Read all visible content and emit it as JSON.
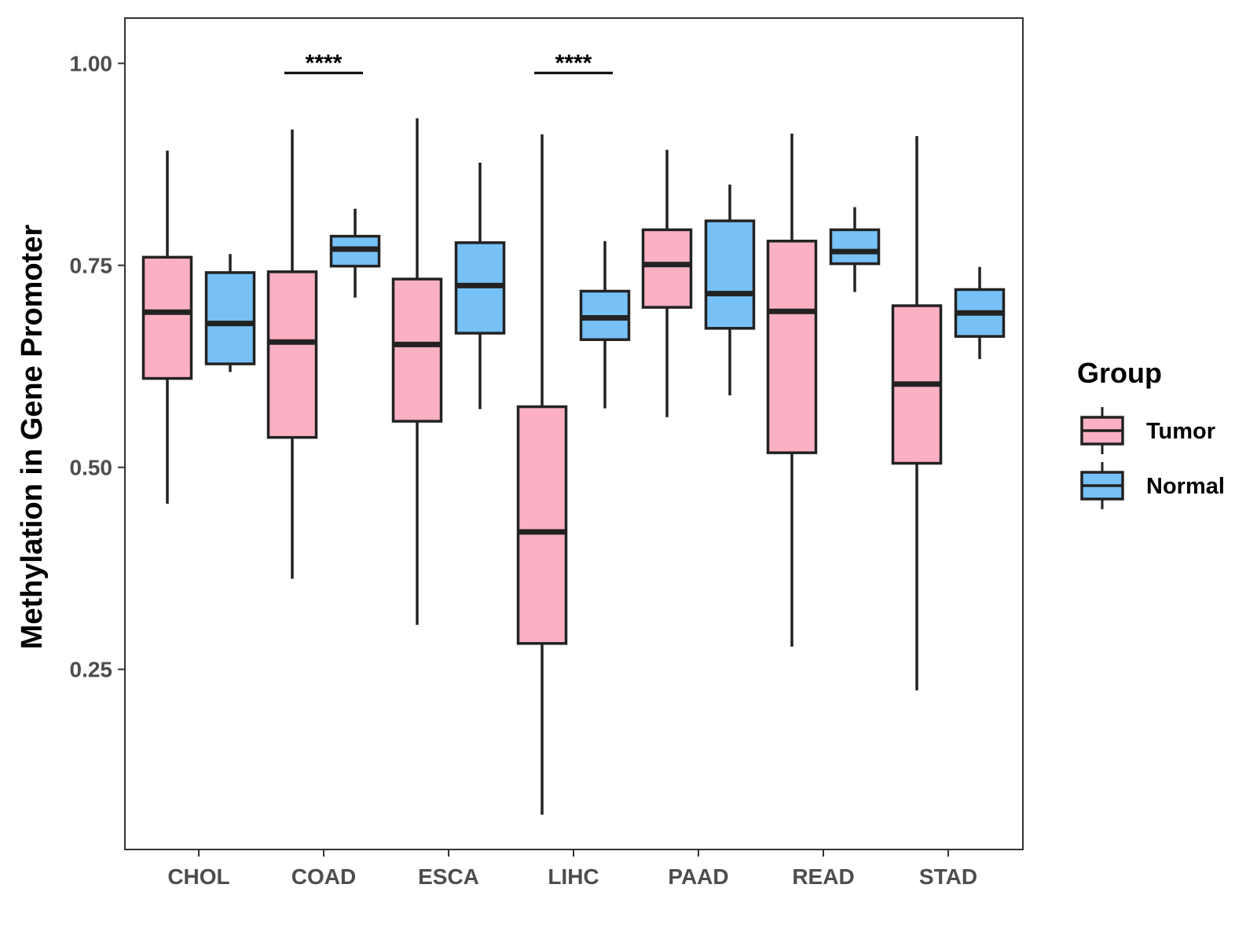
{
  "chart_data": {
    "type": "boxplot",
    "title": "",
    "xlabel": "",
    "ylabel": "Methylation in Gene Promoter",
    "ylim": [
      0.027,
      1.056
    ],
    "yticks": [
      0.25,
      0.5,
      0.75,
      1.0
    ],
    "ytick_labels": [
      "0.25",
      "0.50",
      "0.75",
      "1.00"
    ],
    "categories": [
      "CHOL",
      "COAD",
      "ESCA",
      "LIHC",
      "PAAD",
      "READ",
      "STAD"
    ],
    "legend": {
      "title": "Group",
      "position": "right"
    },
    "series": [
      {
        "name": "Tumor",
        "color": "#FBB1C3",
        "boxes": [
          {
            "category": "CHOL",
            "whisker_low": 0.455,
            "q1": 0.61,
            "median": 0.692,
            "q3": 0.76,
            "whisker_high": 0.892
          },
          {
            "category": "COAD",
            "whisker_low": 0.362,
            "q1": 0.537,
            "median": 0.655,
            "q3": 0.742,
            "whisker_high": 0.918
          },
          {
            "category": "ESCA",
            "whisker_low": 0.305,
            "q1": 0.557,
            "median": 0.652,
            "q3": 0.733,
            "whisker_high": 0.932
          },
          {
            "category": "LIHC",
            "whisker_low": 0.07,
            "q1": 0.282,
            "median": 0.42,
            "q3": 0.575,
            "whisker_high": 0.912
          },
          {
            "category": "PAAD",
            "whisker_low": 0.562,
            "q1": 0.698,
            "median": 0.751,
            "q3": 0.794,
            "whisker_high": 0.893
          },
          {
            "category": "READ",
            "whisker_low": 0.278,
            "q1": 0.518,
            "median": 0.693,
            "q3": 0.78,
            "whisker_high": 0.913
          },
          {
            "category": "STAD",
            "whisker_low": 0.224,
            "q1": 0.505,
            "median": 0.603,
            "q3": 0.7,
            "whisker_high": 0.91
          }
        ]
      },
      {
        "name": "Normal",
        "color": "#77C1F7",
        "boxes": [
          {
            "category": "CHOL",
            "whisker_low": 0.618,
            "q1": 0.628,
            "median": 0.678,
            "q3": 0.741,
            "whisker_high": 0.764
          },
          {
            "category": "COAD",
            "whisker_low": 0.71,
            "q1": 0.749,
            "median": 0.77,
            "q3": 0.786,
            "whisker_high": 0.82
          },
          {
            "category": "ESCA",
            "whisker_low": 0.572,
            "q1": 0.666,
            "median": 0.725,
            "q3": 0.778,
            "whisker_high": 0.877
          },
          {
            "category": "LIHC",
            "whisker_low": 0.573,
            "q1": 0.658,
            "median": 0.685,
            "q3": 0.718,
            "whisker_high": 0.78
          },
          {
            "category": "PAAD",
            "whisker_low": 0.589,
            "q1": 0.672,
            "median": 0.715,
            "q3": 0.805,
            "whisker_high": 0.85
          },
          {
            "category": "READ",
            "whisker_low": 0.717,
            "q1": 0.752,
            "median": 0.767,
            "q3": 0.794,
            "whisker_high": 0.822
          },
          {
            "category": "STAD",
            "whisker_low": 0.634,
            "q1": 0.662,
            "median": 0.691,
            "q3": 0.72,
            "whisker_high": 0.748
          }
        ]
      }
    ],
    "annotations": [
      {
        "category": "COAD",
        "text": "****",
        "y": 0.988
      },
      {
        "category": "LIHC",
        "text": "****",
        "y": 0.988
      }
    ]
  }
}
